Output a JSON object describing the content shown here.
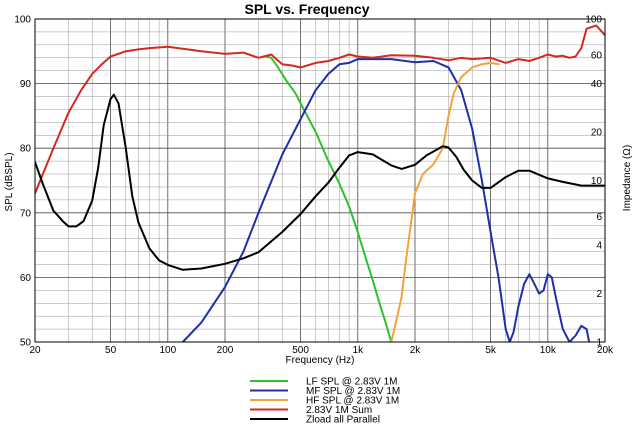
{
  "chart_data": {
    "type": "line",
    "title": "SPL vs. Frequency",
    "xlabel": "Frequency (Hz)",
    "ylabel": "SPL (dBSPL)",
    "y2label": "Impedance (Ω)",
    "x_scale": "log",
    "xlim": [
      20,
      20000
    ],
    "ylim": [
      50,
      100
    ],
    "y2lim": [
      1,
      100
    ],
    "y2_scale": "log",
    "grid": true,
    "legend_position": "bottom-center",
    "x_ticks": [
      {
        "v": 20,
        "label": "20"
      },
      {
        "v": 50,
        "label": "50"
      },
      {
        "v": 100,
        "label": "100"
      },
      {
        "v": 200,
        "label": "200"
      },
      {
        "v": 500,
        "label": "500"
      },
      {
        "v": 1000,
        "label": "1k"
      },
      {
        "v": 2000,
        "label": "2k"
      },
      {
        "v": 5000,
        "label": "5k"
      },
      {
        "v": 10000,
        "label": "10k"
      },
      {
        "v": 20000,
        "label": "20k"
      }
    ],
    "y_ticks": [
      {
        "v": 50,
        "label": "50"
      },
      {
        "v": 60,
        "label": "60"
      },
      {
        "v": 70,
        "label": "70"
      },
      {
        "v": 80,
        "label": "80"
      },
      {
        "v": 90,
        "label": "90"
      },
      {
        "v": 100,
        "label": "100"
      }
    ],
    "y2_ticks": [
      {
        "v": 1,
        "label": "1"
      },
      {
        "v": 2,
        "label": "2"
      },
      {
        "v": 4,
        "label": "4"
      },
      {
        "v": 6,
        "label": "6"
      },
      {
        "v": 10,
        "label": "10"
      },
      {
        "v": 20,
        "label": "20"
      },
      {
        "v": 40,
        "label": "40"
      },
      {
        "v": 60,
        "label": "60"
      },
      {
        "v": 100,
        "label": "100"
      }
    ],
    "series": [
      {
        "name": "LF SPL @ 2.83V 1M",
        "color": "#2ec12e",
        "axis": "left",
        "x": [
          330,
          350,
          380,
          420,
          470,
          520,
          600,
          700,
          800,
          900,
          1000,
          1100,
          1200,
          1300,
          1400,
          1500
        ],
        "y": [
          94.2,
          94.0,
          92.5,
          90.5,
          88.5,
          86.0,
          82.5,
          78.0,
          74.5,
          71.0,
          67.0,
          63.0,
          59.5,
          56.0,
          53.0,
          50.0
        ]
      },
      {
        "name": "MF SPL @ 2.83V 1M",
        "color": "#1f2fa8",
        "axis": "left",
        "x": [
          120,
          150,
          200,
          250,
          300,
          400,
          500,
          600,
          700,
          800,
          900,
          1000,
          1200,
          1500,
          2000,
          2500,
          3000,
          3500,
          4000,
          4500,
          5000,
          5500,
          6000,
          6300,
          6600,
          7000,
          7500,
          8000,
          8500,
          9000,
          9500,
          10000,
          10500,
          11000,
          12000,
          13000,
          14000,
          15000,
          16000,
          16500
        ],
        "y": [
          50.0,
          53.0,
          58.5,
          64.0,
          70.0,
          79.0,
          84.5,
          89.0,
          91.5,
          93.0,
          93.2,
          93.8,
          93.8,
          93.8,
          93.3,
          93.5,
          92.5,
          89.0,
          83.0,
          75.0,
          67.0,
          60.0,
          52.0,
          50.0,
          51.5,
          55.5,
          59.0,
          60.5,
          59.0,
          57.5,
          58.0,
          60.5,
          60.0,
          57.0,
          52.0,
          50.0,
          51.0,
          52.5,
          52.0,
          50.0
        ]
      },
      {
        "name": "HF SPL @ 2.83V 1M",
        "color": "#f3a33c",
        "axis": "left",
        "x": [
          1500,
          1600,
          1700,
          1800,
          2000,
          2200,
          2500,
          2800,
          3000,
          3200,
          3500,
          4000,
          4500,
          5000,
          5500
        ],
        "y": [
          50.0,
          53.5,
          57.0,
          63.0,
          73.0,
          76.0,
          77.5,
          80.0,
          85.0,
          88.5,
          91.0,
          92.5,
          93.0,
          93.2,
          93.0
        ]
      },
      {
        "name": "2.83V 1M Sum",
        "color": "#d42a1e",
        "axis": "left",
        "x": [
          20,
          25,
          30,
          35,
          40,
          45,
          50,
          60,
          70,
          80,
          100,
          120,
          150,
          200,
          250,
          300,
          350,
          400,
          450,
          500,
          600,
          700,
          800,
          900,
          1000,
          1200,
          1500,
          2000,
          2500,
          3000,
          3500,
          4000,
          5000,
          6000,
          7000,
          8000,
          9000,
          10000,
          11000,
          12000,
          13000,
          14000,
          15000,
          16000,
          18000,
          20000
        ],
        "y": [
          73.0,
          80.0,
          85.5,
          89.0,
          91.5,
          93.0,
          94.2,
          95.0,
          95.3,
          95.5,
          95.7,
          95.4,
          95.0,
          94.6,
          94.8,
          94.0,
          94.5,
          93.0,
          92.8,
          92.5,
          93.2,
          93.5,
          94.0,
          94.5,
          94.2,
          94.0,
          94.4,
          94.3,
          94.0,
          93.6,
          94.0,
          93.8,
          94.0,
          93.2,
          93.8,
          93.5,
          94.0,
          94.5,
          94.2,
          94.3,
          94.0,
          94.2,
          95.5,
          98.5,
          99.0,
          97.5
        ]
      },
      {
        "name": "Zload all Parallel",
        "color": "#000000",
        "axis": "right",
        "x": [
          20,
          22,
          25,
          28,
          30,
          33,
          36,
          40,
          43,
          46,
          50,
          52,
          55,
          60,
          65,
          70,
          80,
          90,
          100,
          120,
          150,
          200,
          250,
          300,
          400,
          500,
          600,
          700,
          800,
          900,
          1000,
          1200,
          1500,
          1700,
          2000,
          2300,
          2600,
          2800,
          3000,
          3300,
          3600,
          4000,
          4500,
          5000,
          6000,
          7000,
          8000,
          10000,
          12000,
          15000,
          20000
        ],
        "y": [
          13.0,
          9.5,
          6.5,
          5.6,
          5.2,
          5.2,
          5.6,
          7.5,
          12.0,
          22.0,
          32.0,
          34.0,
          30.0,
          16.0,
          8.0,
          5.5,
          3.8,
          3.2,
          3.0,
          2.8,
          2.85,
          3.05,
          3.3,
          3.6,
          4.8,
          6.2,
          8.0,
          9.7,
          12.0,
          14.3,
          15.0,
          14.5,
          12.4,
          11.8,
          12.5,
          14.3,
          15.5,
          16.3,
          16.0,
          14.0,
          11.7,
          10.0,
          9.0,
          9.0,
          10.5,
          11.5,
          11.5,
          10.3,
          9.8,
          9.3,
          9.3
        ]
      }
    ]
  }
}
